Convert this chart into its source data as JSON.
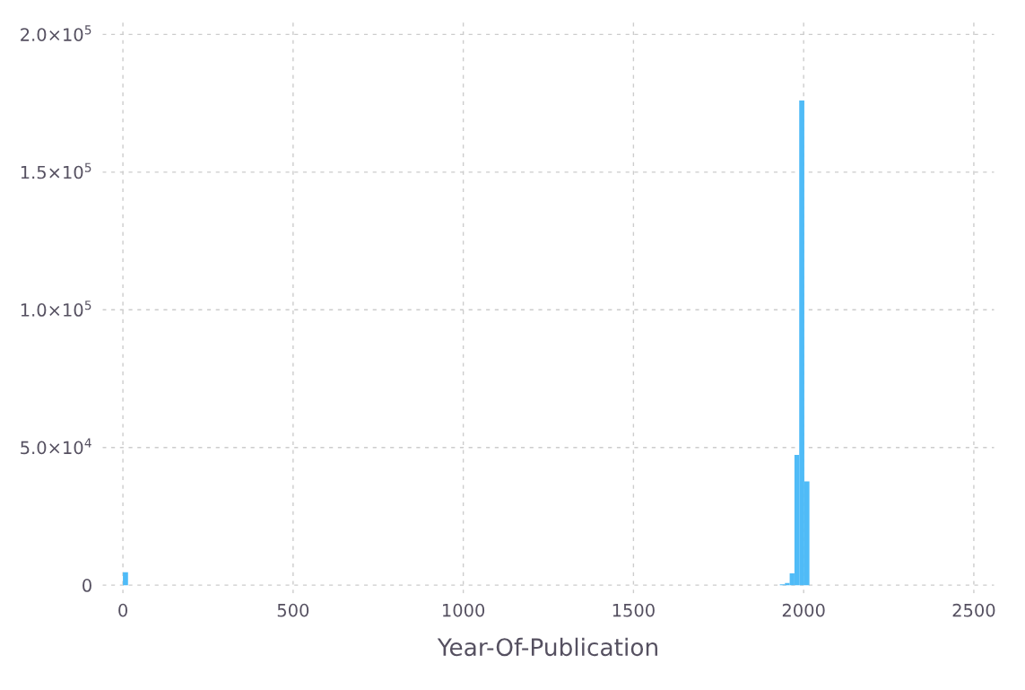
{
  "chart_data": {
    "type": "histogram",
    "xlabel": "Year-Of-Publication",
    "bins": [
      0,
      15,
      1930,
      1945,
      1959,
      1973,
      1987,
      2002,
      2017
    ],
    "values": [
      4700,
      0,
      300,
      800,
      4300,
      47300,
      176000,
      37700
    ],
    "color": "#4fbbf7",
    "xlim": [
      -60,
      2560
    ],
    "xticks": [
      0,
      500,
      1000,
      1500,
      2000,
      2500
    ],
    "ylim": [
      -3000,
      205000
    ],
    "yticks": [
      0,
      {
        "value": 50000,
        "label": "5.0×10$^{4}$"
      },
      {
        "value": 100000,
        "label": "1.0×10$^{5}$"
      },
      {
        "value": 150000,
        "label": "1.5×10$^{5}$"
      },
      {
        "value": 200000,
        "label": "2.0×10$^{5}$"
      }
    ],
    "grid": true
  }
}
